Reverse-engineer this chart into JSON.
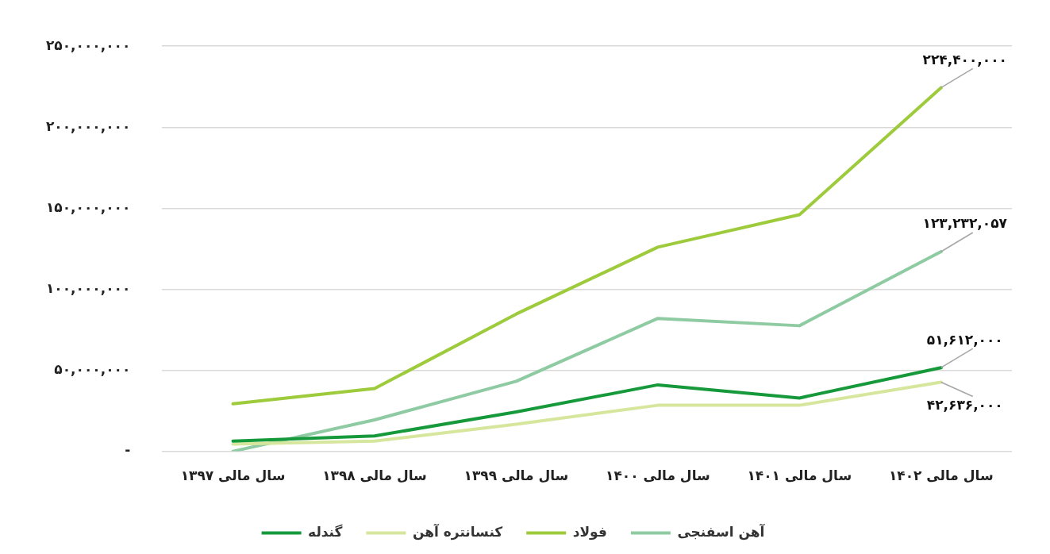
{
  "chart_data": {
    "type": "line",
    "categories": [
      "سال مالی ۱۳۹۷",
      "سال مالی ۱۳۹۸",
      "سال مالی ۱۳۹۹",
      "سال مالی ۱۴۰۰",
      "سال مالی ۱۴۰۱",
      "سال مالی ۱۴۰۲"
    ],
    "series": [
      {
        "name": "گندله",
        "color": "#16993a",
        "values": [
          6300000,
          9500000,
          24300000,
          41000000,
          32900000,
          51612000
        ],
        "value_labels": [
          null,
          null,
          null,
          null,
          null,
          "۵۱,۶۱۲,۰۰۰"
        ]
      },
      {
        "name": "کنسانتره آهن",
        "color": "#d6e69c",
        "values": [
          4500000,
          6300000,
          16700000,
          28400000,
          28400000,
          42636000
        ],
        "value_labels": [
          null,
          null,
          null,
          null,
          null,
          "۴۲,۶۳۶,۰۰۰"
        ]
      },
      {
        "name": "فولاد",
        "color": "#9dcb3b",
        "values": [
          29300000,
          38700000,
          84700000,
          126000000,
          146000000,
          224400000
        ],
        "value_labels": [
          null,
          null,
          null,
          null,
          null,
          "۲۲۴,۴۰۰,۰۰۰"
        ]
      },
      {
        "name": "آهن اسفنجی",
        "color": "#8ecba2",
        "values": [
          0,
          19400000,
          43200000,
          82000000,
          77500000,
          123232057
        ],
        "value_labels": [
          null,
          null,
          null,
          null,
          null,
          "۱۲۳,۲۳۲,۰۵۷"
        ]
      }
    ],
    "ylim": [
      0,
      250000000
    ],
    "yticks": [
      {
        "value": 0,
        "label": "-"
      },
      {
        "value": 50000000,
        "label": "۵۰,۰۰۰,۰۰۰"
      },
      {
        "value": 100000000,
        "label": "۱۰۰,۰۰۰,۰۰۰"
      },
      {
        "value": 150000000,
        "label": "۱۵۰,۰۰۰,۰۰۰"
      },
      {
        "value": 200000000,
        "label": "۲۰۰,۰۰۰,۰۰۰"
      },
      {
        "value": 250000000,
        "label": "۲۵۰,۰۰۰,۰۰۰"
      }
    ],
    "grid": "y",
    "legend": "bottom",
    "marker": "none",
    "line_style": "solid"
  }
}
